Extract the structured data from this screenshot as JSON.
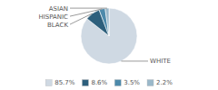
{
  "chart_data": {
    "type": "pie",
    "categories": [
      "WHITE",
      "BLACK",
      "HISPANIC",
      "ASIAN"
    ],
    "values": [
      85.7,
      8.6,
      3.5,
      2.2
    ],
    "value_labels": [
      "85.7%",
      "8.6%",
      "3.5%",
      "2.2%"
    ],
    "colors": [
      "#cfd9e3",
      "#2d5f7c",
      "#4d8aab",
      "#9ab8ca"
    ],
    "legend": "bottom"
  }
}
